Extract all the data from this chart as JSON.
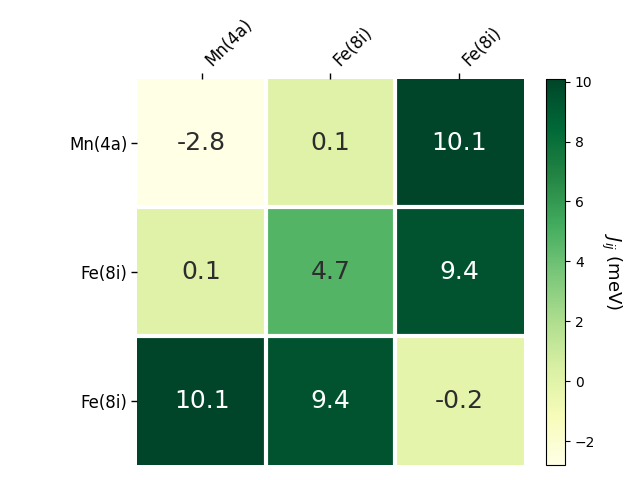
{
  "matrix": [
    [
      -2.8,
      0.1,
      10.1
    ],
    [
      0.1,
      4.7,
      9.4
    ],
    [
      10.1,
      9.4,
      -0.2
    ]
  ],
  "row_labels": [
    "Mn(4a)",
    "Fe(8i)",
    "Fe(8i)"
  ],
  "col_labels": [
    "Mn(4a)",
    "Fe(8i)",
    "Fe(8i)"
  ],
  "colorbar_label": "$J_{ij}$ (meV)",
  "vmin": -2.8,
  "vmax": 10.1,
  "cmap": "YlGn",
  "figsize": [
    6.4,
    4.8
  ],
  "dpi": 100,
  "text_dark": "#2d2d2d",
  "text_light": "#ffffff",
  "threshold": 0.5,
  "colorbar_ticks": [
    -2,
    0,
    2,
    4,
    6,
    8,
    10
  ],
  "annotation_fontsize": 18,
  "tick_fontsize": 12,
  "colorbar_fontsize": 13,
  "linewidth": 3
}
